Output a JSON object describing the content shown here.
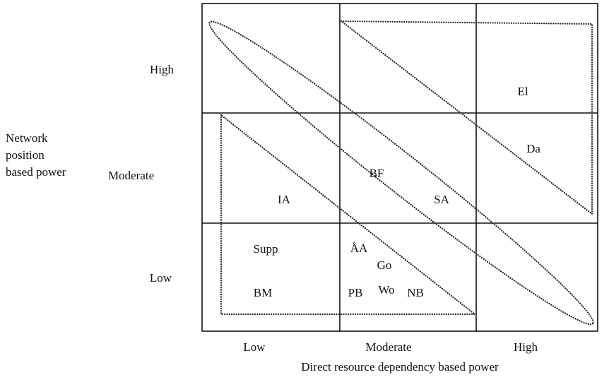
{
  "y_axis_title": [
    "Network",
    "position",
    "based power"
  ],
  "row_labels": [
    "High",
    "Moderate",
    "Low"
  ],
  "column_labels": [
    "Low",
    "Moderate",
    "High"
  ],
  "x_axis_title": "Direct resource dependency based power",
  "items": [
    {
      "label": "El"
    },
    {
      "label": "Da"
    },
    {
      "label": "BF"
    },
    {
      "label": "SA"
    },
    {
      "label": "IA"
    },
    {
      "label": "Supp"
    },
    {
      "label": "ÅA"
    },
    {
      "label": "Go"
    },
    {
      "label": "BM"
    },
    {
      "label": "PB"
    },
    {
      "label": "Wo"
    },
    {
      "label": "NB"
    }
  ]
}
